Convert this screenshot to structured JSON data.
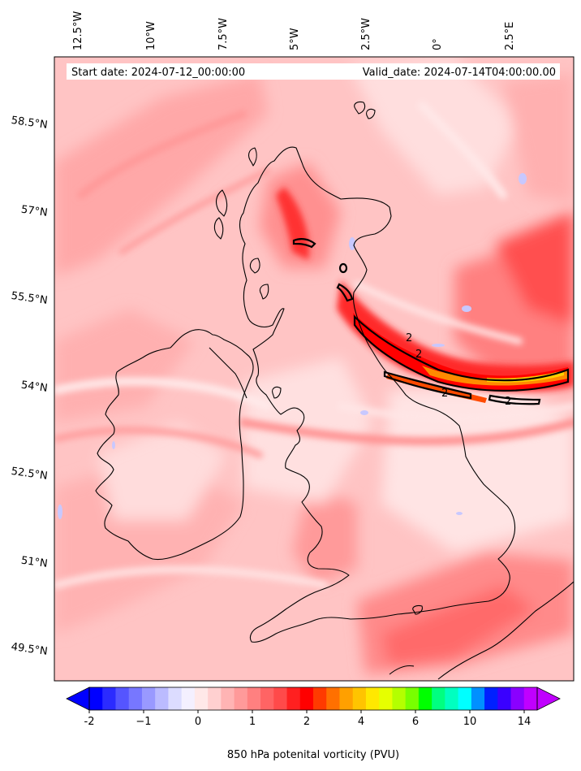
{
  "header": {
    "start_date": "Start date: 2024-07-12_00:00:00",
    "valid_date": "Valid_date: 2024-07-14T04:00:00.00"
  },
  "axes": {
    "lon_labels": [
      "12.5°W",
      "10°W",
      "7.5°W",
      "5°W",
      "2.5°W",
      "0°",
      "2.5°E"
    ],
    "lat_labels": [
      "58.5°N",
      "57°N",
      "55.5°N",
      "54°N",
      "52.5°N",
      "51°N",
      "49.5°N"
    ]
  },
  "contours": {
    "level_label": "2"
  },
  "colorbar": {
    "tick_labels": [
      "-2",
      "−1",
      "0",
      "1",
      "2",
      "4",
      "6",
      "10",
      "14"
    ],
    "title": "850 hPa potenital vorticity (PVU)",
    "colors": [
      "#0000ff",
      "#2b2bff",
      "#5555ff",
      "#7777ff",
      "#9999ff",
      "#bbbbff",
      "#dcdcff",
      "#f4f0ff",
      "#ffe8e8",
      "#ffd0d0",
      "#ffb4b4",
      "#ff9a9a",
      "#ff8080",
      "#ff6464",
      "#ff4a4a",
      "#ff2020",
      "#ff0000",
      "#ff3a00",
      "#ff7000",
      "#ffa000",
      "#ffc400",
      "#ffe800",
      "#e6ff00",
      "#b4ff00",
      "#78ff00",
      "#00ff00",
      "#00ff80",
      "#00ffc0",
      "#00ffff",
      "#0090ff",
      "#0020ff",
      "#3a00ff",
      "#8a00ff",
      "#c000ff"
    ]
  }
}
